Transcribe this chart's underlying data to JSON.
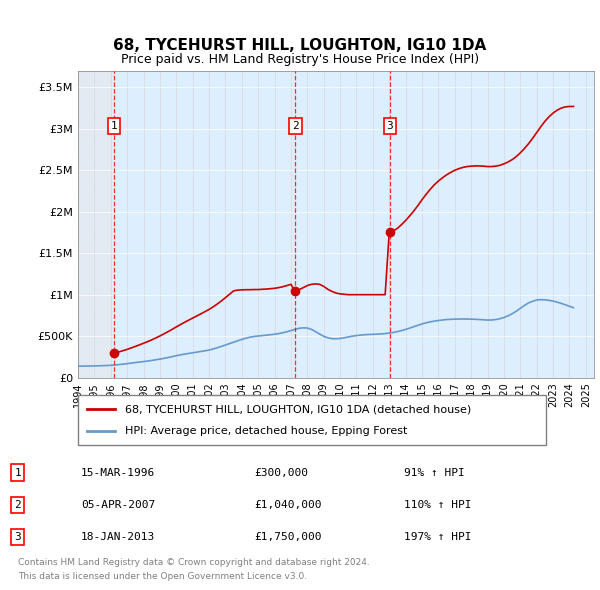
{
  "title": "68, TYCEHURST HILL, LOUGHTON, IG10 1DA",
  "subtitle": "Price paid vs. HM Land Registry's House Price Index (HPI)",
  "legend_property": "68, TYCEHURST HILL, LOUGHTON, IG10 1DA (detached house)",
  "legend_hpi": "HPI: Average price, detached house, Epping Forest",
  "footer1": "Contains HM Land Registry data © Crown copyright and database right 2024.",
  "footer2": "This data is licensed under the Open Government Licence v3.0.",
  "property_color": "#cc0000",
  "hpi_color": "#6699cc",
  "background_plot": "#ddeeff",
  "background_hatch": "#e8e8e8",
  "ylim": [
    0,
    3700000
  ],
  "yticks": [
    0,
    500000,
    1000000,
    1500000,
    2000000,
    2500000,
    3000000,
    3500000
  ],
  "ytick_labels": [
    "£0",
    "£500K",
    "£1M",
    "£1.5M",
    "£2M",
    "£2.5M",
    "£3M",
    "£3.5M"
  ],
  "xmin": 1994.0,
  "xmax": 2025.5,
  "sale_dates": [
    1996.2,
    2007.27,
    2013.05
  ],
  "sale_prices": [
    300000,
    1040000,
    1750000
  ],
  "sale_labels": [
    "1",
    "2",
    "3"
  ],
  "sale_info": [
    [
      "1",
      "15-MAR-1996",
      "£300,000",
      "91% ↑ HPI"
    ],
    [
      "2",
      "05-APR-2007",
      "£1,040,000",
      "110% ↑ HPI"
    ],
    [
      "3",
      "18-JAN-2013",
      "£1,750,000",
      "197% ↑ HPI"
    ]
  ],
  "hpi_x": [
    1994.0,
    1994.25,
    1994.5,
    1994.75,
    1995.0,
    1995.25,
    1995.5,
    1995.75,
    1996.0,
    1996.25,
    1996.5,
    1996.75,
    1997.0,
    1997.25,
    1997.5,
    1997.75,
    1998.0,
    1998.25,
    1998.5,
    1998.75,
    1999.0,
    1999.25,
    1999.5,
    1999.75,
    2000.0,
    2000.25,
    2000.5,
    2000.75,
    2001.0,
    2001.25,
    2001.5,
    2001.75,
    2002.0,
    2002.25,
    2002.5,
    2002.75,
    2003.0,
    2003.25,
    2003.5,
    2003.75,
    2004.0,
    2004.25,
    2004.5,
    2004.75,
    2005.0,
    2005.25,
    2005.5,
    2005.75,
    2006.0,
    2006.25,
    2006.5,
    2006.75,
    2007.0,
    2007.25,
    2007.5,
    2007.75,
    2008.0,
    2008.25,
    2008.5,
    2008.75,
    2009.0,
    2009.25,
    2009.5,
    2009.75,
    2010.0,
    2010.25,
    2010.5,
    2010.75,
    2011.0,
    2011.25,
    2011.5,
    2011.75,
    2012.0,
    2012.25,
    2012.5,
    2012.75,
    2013.0,
    2013.25,
    2013.5,
    2013.75,
    2014.0,
    2014.25,
    2014.5,
    2014.75,
    2015.0,
    2015.25,
    2015.5,
    2015.75,
    2016.0,
    2016.25,
    2016.5,
    2016.75,
    2017.0,
    2017.25,
    2017.5,
    2017.75,
    2018.0,
    2018.25,
    2018.5,
    2018.75,
    2019.0,
    2019.25,
    2019.5,
    2019.75,
    2020.0,
    2020.25,
    2020.5,
    2020.75,
    2021.0,
    2021.25,
    2021.5,
    2021.75,
    2022.0,
    2022.25,
    2022.5,
    2022.75,
    2023.0,
    2023.25,
    2023.5,
    2023.75,
    2024.0,
    2024.25
  ],
  "hpi_y": [
    138000,
    138500,
    139000,
    140000,
    141000,
    142000,
    144000,
    146000,
    148000,
    152000,
    157000,
    162000,
    168000,
    175000,
    181000,
    187000,
    193000,
    200000,
    207000,
    215000,
    223000,
    232000,
    242000,
    253000,
    264000,
    274000,
    283000,
    291000,
    299000,
    307000,
    315000,
    323000,
    332000,
    345000,
    360000,
    376000,
    393000,
    410000,
    427000,
    444000,
    461000,
    475000,
    487000,
    496000,
    502000,
    507000,
    512000,
    517000,
    523000,
    531000,
    541000,
    553000,
    567000,
    582000,
    595000,
    600000,
    598000,
    582000,
    555000,
    525000,
    498000,
    480000,
    470000,
    468000,
    472000,
    480000,
    490000,
    500000,
    507000,
    513000,
    517000,
    520000,
    522000,
    524000,
    527000,
    531000,
    537000,
    545000,
    555000,
    567000,
    581000,
    597000,
    614000,
    631000,
    647000,
    661000,
    672000,
    681000,
    688000,
    695000,
    700000,
    703000,
    705000,
    706000,
    707000,
    706000,
    705000,
    703000,
    700000,
    697000,
    694000,
    695000,
    700000,
    710000,
    724000,
    745000,
    770000,
    800000,
    835000,
    870000,
    900000,
    920000,
    935000,
    940000,
    938000,
    932000,
    922000,
    910000,
    895000,
    878000,
    860000,
    843000
  ],
  "property_x": [
    1994.0,
    1994.25,
    1994.5,
    1994.75,
    1995.0,
    1995.25,
    1995.5,
    1995.75,
    1996.0,
    1996.25,
    1996.5,
    1996.75,
    1997.0,
    1997.25,
    1997.5,
    1997.75,
    1998.0,
    1998.25,
    1998.5,
    1998.75,
    1999.0,
    1999.25,
    1999.5,
    1999.75,
    2000.0,
    2000.25,
    2000.5,
    2000.75,
    2001.0,
    2001.25,
    2001.5,
    2001.75,
    2002.0,
    2002.25,
    2002.5,
    2002.75,
    2003.0,
    2003.25,
    2003.5,
    2003.75,
    2004.0,
    2004.25,
    2004.5,
    2004.75,
    2005.0,
    2005.25,
    2005.5,
    2005.75,
    2006.0,
    2006.25,
    2006.5,
    2006.75,
    2007.0,
    2007.25,
    2007.5,
    2007.75,
    2008.0,
    2008.25,
    2008.5,
    2008.75,
    2009.0,
    2009.25,
    2009.5,
    2009.75,
    2010.0,
    2010.25,
    2010.5,
    2010.75,
    2011.0,
    2011.25,
    2011.5,
    2011.75,
    2012.0,
    2012.25,
    2012.5,
    2012.75,
    2013.0,
    2013.25,
    2013.5,
    2013.75,
    2014.0,
    2014.25,
    2014.5,
    2014.75,
    2015.0,
    2015.25,
    2015.5,
    2015.75,
    2016.0,
    2016.25,
    2016.5,
    2016.75,
    2017.0,
    2017.25,
    2017.5,
    2017.75,
    2018.0,
    2018.25,
    2018.5,
    2018.75,
    2019.0,
    2019.25,
    2019.5,
    2019.75,
    2020.0,
    2020.25,
    2020.5,
    2020.75,
    2021.0,
    2021.25,
    2021.5,
    2021.75,
    2022.0,
    2022.25,
    2022.5,
    2022.75,
    2023.0,
    2023.25,
    2023.5,
    2023.75,
    2024.0,
    2024.25
  ],
  "property_y": [
    null,
    null,
    null,
    null,
    null,
    null,
    null,
    null,
    null,
    300000,
    310000,
    325000,
    340000,
    358000,
    376000,
    395000,
    414000,
    434000,
    455000,
    478000,
    502000,
    528000,
    554000,
    582000,
    611000,
    639000,
    666000,
    692000,
    718000,
    743000,
    769000,
    795000,
    822000,
    853000,
    887000,
    924000,
    964000,
    1005000,
    1046000,
    1055000,
    1058000,
    1060000,
    1060000,
    1062000,
    1062000,
    1065000,
    1068000,
    1072000,
    1077000,
    1085000,
    1096000,
    1110000,
    1125000,
    1040000,
    1060000,
    1085000,
    1110000,
    1125000,
    1130000,
    1125000,
    1100000,
    1065000,
    1040000,
    1020000,
    1010000,
    1005000,
    1000000,
    1000000,
    1000000,
    1000000,
    1000000,
    1000000,
    1000000,
    1000000,
    1000000,
    1000000,
    1750000,
    1770000,
    1800000,
    1845000,
    1895000,
    1950000,
    2010000,
    2075000,
    2145000,
    2210000,
    2270000,
    2325000,
    2370000,
    2410000,
    2445000,
    2475000,
    2500000,
    2520000,
    2535000,
    2545000,
    2550000,
    2553000,
    2553000,
    2550000,
    2545000,
    2545000,
    2550000,
    2560000,
    2578000,
    2600000,
    2628000,
    2665000,
    2710000,
    2762000,
    2820000,
    2885000,
    2955000,
    3025000,
    3090000,
    3145000,
    3190000,
    3225000,
    3250000,
    3265000,
    3270000,
    3270000,
    3265000
  ]
}
